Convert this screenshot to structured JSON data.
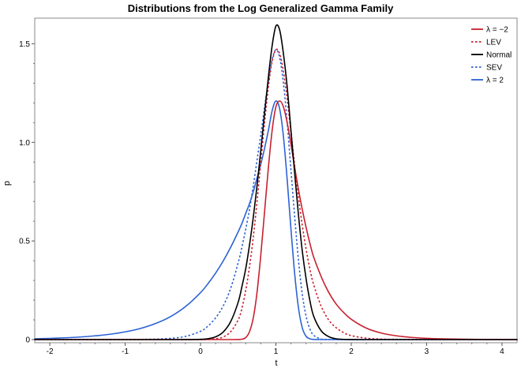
{
  "chart_data": {
    "type": "line",
    "title": "Distributions from the Log Generalized Gamma Family",
    "xlabel": "t",
    "ylabel": "p",
    "xlim": [
      -2.2,
      4.2
    ],
    "ylim": [
      0,
      1.6
    ],
    "xticks": [
      -2,
      -1,
      0,
      1,
      2,
      3,
      4
    ],
    "xtick_labels": [
      "-2",
      "-1",
      "0",
      "1",
      "2",
      "3",
      "4"
    ],
    "yticks": [
      0,
      0.5,
      1.0,
      1.5
    ],
    "ytick_labels": [
      "0",
      "0.5",
      "1.0",
      "1.5"
    ],
    "grid": false,
    "legend_position": "top-right",
    "x": [
      -2.2,
      -2.0,
      -1.8,
      -1.6,
      -1.4,
      -1.2,
      -1.0,
      -0.8,
      -0.6,
      -0.4,
      -0.2,
      0.0,
      0.1,
      0.2,
      0.3,
      0.4,
      0.5,
      0.55,
      0.6,
      0.65,
      0.7,
      0.75,
      0.8,
      0.85,
      0.9,
      0.95,
      1.0,
      1.05,
      1.1,
      1.15,
      1.2,
      1.25,
      1.3,
      1.35,
      1.4,
      1.45,
      1.5,
      1.6,
      1.7,
      1.8,
      1.9,
      2.0,
      2.2,
      2.4,
      2.6,
      2.8,
      3.0,
      3.2,
      3.4,
      3.6,
      3.8,
      4.0,
      4.2
    ],
    "series": [
      {
        "name": "λ = −2",
        "color": "#c8202f",
        "dash": "solid",
        "values": [
          0,
          0,
          0,
          0,
          0,
          0,
          0,
          0,
          0,
          0,
          0,
          0,
          0,
          0,
          0,
          0,
          0.0003,
          0.002,
          0.01,
          0.04,
          0.11,
          0.24,
          0.43,
          0.65,
          0.87,
          1.06,
          1.18,
          1.21,
          1.18,
          1.1,
          0.99,
          0.87,
          0.76,
          0.66,
          0.57,
          0.49,
          0.42,
          0.32,
          0.24,
          0.18,
          0.137,
          0.103,
          0.058,
          0.033,
          0.019,
          0.011,
          0.0065,
          0.0038,
          0.0022,
          0.0013,
          0.0008,
          0.0005,
          0.0003
        ]
      },
      {
        "name": "LEV",
        "color": "#c8202f",
        "dash": "dotted",
        "values": [
          0,
          0,
          0,
          0,
          0,
          0,
          0,
          0,
          0,
          0,
          0,
          0.0002,
          0.001,
          0.004,
          0.013,
          0.04,
          0.1,
          0.16,
          0.25,
          0.37,
          0.52,
          0.7,
          0.9,
          1.1,
          1.28,
          1.41,
          1.47,
          1.45,
          1.36,
          1.22,
          1.05,
          0.88,
          0.72,
          0.58,
          0.46,
          0.36,
          0.28,
          0.17,
          0.1,
          0.06,
          0.035,
          0.02,
          0.007,
          0.0025,
          0.0009,
          0.0003,
          0.0001,
          0,
          0,
          0,
          0,
          0,
          0
        ]
      },
      {
        "name": "Normal",
        "color": "#000000",
        "dash": "solid",
        "values": [
          0,
          0,
          0,
          0,
          0,
          0,
          0,
          0,
          0,
          0,
          0.0001,
          0.0012,
          0.0044,
          0.014,
          0.038,
          0.091,
          0.19,
          0.27,
          0.36,
          0.48,
          0.62,
          0.78,
          0.96,
          1.15,
          1.33,
          1.49,
          1.59,
          1.57,
          1.45,
          1.28,
          1.06,
          0.84,
          0.63,
          0.45,
          0.31,
          0.2,
          0.12,
          0.045,
          0.015,
          0.004,
          0.001,
          0.0002,
          0,
          0,
          0,
          0,
          0,
          0,
          0,
          0,
          0,
          0,
          0
        ]
      },
      {
        "name": "SEV",
        "color": "#2c62d6",
        "dash": "dotted",
        "values": [
          0,
          0,
          0,
          0,
          0,
          0.0001,
          0.0003,
          0.0008,
          0.0022,
          0.006,
          0.016,
          0.042,
          0.069,
          0.11,
          0.17,
          0.26,
          0.39,
          0.47,
          0.56,
          0.66,
          0.78,
          0.91,
          1.04,
          1.18,
          1.31,
          1.42,
          1.47,
          1.43,
          1.3,
          1.1,
          0.86,
          0.62,
          0.4,
          0.23,
          0.12,
          0.055,
          0.022,
          0.0025,
          0.0001,
          0,
          0,
          0,
          0,
          0,
          0,
          0,
          0,
          0,
          0,
          0,
          0,
          0,
          0
        ]
      },
      {
        "name": "λ = 2",
        "color": "#2c62d6",
        "dash": "solid",
        "values": [
          0.004,
          0.006,
          0.009,
          0.013,
          0.019,
          0.027,
          0.039,
          0.056,
          0.081,
          0.116,
          0.167,
          0.238,
          0.284,
          0.337,
          0.398,
          0.468,
          0.547,
          0.59,
          0.64,
          0.69,
          0.75,
          0.82,
          0.89,
          0.97,
          1.06,
          1.16,
          1.21,
          1.17,
          1.03,
          0.81,
          0.56,
          0.33,
          0.16,
          0.06,
          0.017,
          0.004,
          0.0006,
          0,
          0,
          0,
          0,
          0,
          0,
          0,
          0,
          0,
          0,
          0,
          0,
          0,
          0,
          0,
          0
        ]
      }
    ]
  }
}
